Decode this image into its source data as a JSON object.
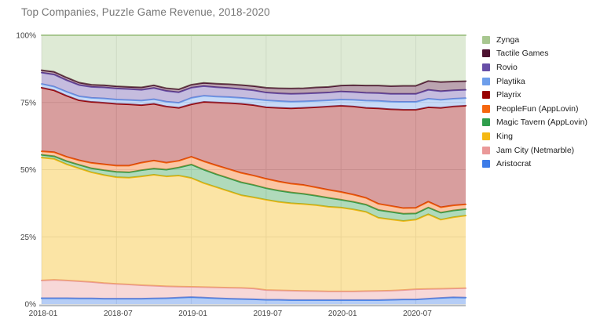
{
  "title": "Top Companies, Puzzle Game Revenue, 2018-2020",
  "colors": {
    "grid": "#e6e6e6",
    "axis_bar": "#b7bcc2",
    "tick_text": "#444444",
    "title_text": "#757575",
    "legend_text": "#212121",
    "background": "#ffffff"
  },
  "chart_data": {
    "type": "area",
    "stacked": true,
    "percent_mode": true,
    "title": "Top Companies, Puzzle Game Revenue, 2018-2020",
    "xlabel": "",
    "ylabel": "",
    "ylim": [
      0,
      100
    ],
    "grid": true,
    "legend_position": "right",
    "y_tick_labels": [
      "0%",
      "25%",
      "50%",
      "75%",
      "100%"
    ],
    "y_tick_values": [
      0,
      25,
      50,
      75,
      100
    ],
    "x_tick_labels": [
      "2018-01",
      "2018-07",
      "2019-01",
      "2019-07",
      "2020-01",
      "2020-07"
    ],
    "x_tick_indices": [
      0,
      6,
      12,
      18,
      24,
      30
    ],
    "x": [
      "2018-01",
      "2018-02",
      "2018-03",
      "2018-04",
      "2018-05",
      "2018-06",
      "2018-07",
      "2018-08",
      "2018-09",
      "2018-10",
      "2018-11",
      "2018-12",
      "2019-01",
      "2019-02",
      "2019-03",
      "2019-04",
      "2019-05",
      "2019-06",
      "2019-07",
      "2019-08",
      "2019-09",
      "2019-10",
      "2019-11",
      "2019-12",
      "2020-01",
      "2020-02",
      "2020-03",
      "2020-04",
      "2020-05",
      "2020-06",
      "2020-07",
      "2020-08",
      "2020-09",
      "2020-10",
      "2020-11"
    ],
    "legend_order_top_to_bottom": [
      "Zynga",
      "Tactile Games",
      "Rovio",
      "Playtika",
      "Playrix",
      "PeopleFun (AppLovin)",
      "Magic Tavern (AppLovin)",
      "King",
      "Jam City (Netmarble)",
      "Aristocrat"
    ],
    "series_note": "series listed bottom-to-top of the stack; values are revenue share in percent",
    "series": [
      {
        "name": "Aristocrat",
        "color": "#3d7ce8",
        "values": [
          2.2,
          2.2,
          2.2,
          2.1,
          2.1,
          2.0,
          2.0,
          2.0,
          2.0,
          2.1,
          2.2,
          2.4,
          2.6,
          2.4,
          2.2,
          2.0,
          1.9,
          1.8,
          1.6,
          1.6,
          1.5,
          1.5,
          1.5,
          1.5,
          1.5,
          1.5,
          1.5,
          1.5,
          1.6,
          1.7,
          1.7,
          2.0,
          2.3,
          2.5,
          2.4
        ]
      },
      {
        "name": "Jam City (Netmarble)",
        "color": "#ea9999",
        "values": [
          6.6,
          6.8,
          6.6,
          6.4,
          6.1,
          5.8,
          5.5,
          5.3,
          5.0,
          4.7,
          4.4,
          4.1,
          3.8,
          3.9,
          4.0,
          4.1,
          4.1,
          4.0,
          3.6,
          3.5,
          3.5,
          3.4,
          3.3,
          3.2,
          3.2,
          3.2,
          3.3,
          3.4,
          3.4,
          3.5,
          3.8,
          3.6,
          3.4,
          3.3,
          3.5
        ]
      },
      {
        "name": "King",
        "color": "#f5b812",
        "values": [
          45.7,
          45.0,
          43.2,
          42.0,
          40.8,
          40.2,
          39.7,
          39.7,
          40.5,
          41.3,
          40.9,
          41.3,
          40.5,
          38.7,
          37.3,
          35.9,
          34.5,
          33.9,
          33.6,
          32.9,
          32.5,
          32.3,
          32.0,
          31.5,
          31.2,
          30.5,
          29.5,
          27.2,
          26.5,
          25.7,
          25.9,
          27.8,
          25.7,
          26.5,
          27.0
        ]
      },
      {
        "name": "Magic Tavern (AppLovin)",
        "color": "#2f9e4c",
        "values": [
          1.0,
          1.0,
          1.2,
          1.3,
          1.5,
          1.8,
          2.0,
          2.0,
          2.3,
          2.3,
          2.5,
          3.0,
          5.0,
          5.0,
          4.8,
          4.8,
          4.8,
          4.6,
          4.3,
          4.2,
          4.0,
          3.8,
          3.5,
          3.3,
          2.9,
          2.8,
          2.7,
          2.9,
          2.8,
          2.7,
          2.3,
          2.5,
          2.6,
          2.5,
          2.4
        ]
      },
      {
        "name": "PeopleFun (AppLovin)",
        "color": "#f5670f",
        "values": [
          1.3,
          1.5,
          1.6,
          1.7,
          2.0,
          2.2,
          2.3,
          2.5,
          2.8,
          3.0,
          2.6,
          2.5,
          2.9,
          3.1,
          3.3,
          3.4,
          3.5,
          3.5,
          3.5,
          3.4,
          3.3,
          3.3,
          3.1,
          3.0,
          2.9,
          2.7,
          2.5,
          2.3,
          2.2,
          2.1,
          2.1,
          2.2,
          2.0,
          1.9,
          1.8
        ]
      },
      {
        "name": "Playrix",
        "color": "#990000",
        "values": [
          23.7,
          23.0,
          22.7,
          22.3,
          22.7,
          22.9,
          23.0,
          22.8,
          21.4,
          21.1,
          20.9,
          19.7,
          19.5,
          22.1,
          23.4,
          24.6,
          25.7,
          26.2,
          26.6,
          27.4,
          28.0,
          28.7,
          29.8,
          31.0,
          32.1,
          32.8,
          33.5,
          35.5,
          36.0,
          36.6,
          36.5,
          35.1,
          37.0,
          36.8,
          36.7
        ]
      },
      {
        "name": "Playtika",
        "color": "#6d9eeb",
        "values": [
          1.4,
          1.4,
          1.5,
          1.5,
          1.5,
          1.6,
          1.6,
          1.6,
          1.7,
          1.7,
          1.8,
          1.9,
          2.4,
          2.3,
          2.2,
          2.2,
          2.2,
          2.3,
          2.6,
          2.5,
          2.5,
          2.4,
          2.4,
          2.3,
          2.3,
          2.5,
          2.7,
          2.8,
          2.8,
          2.9,
          2.9,
          3.2,
          3.0,
          2.9,
          2.8
        ]
      },
      {
        "name": "Rovio",
        "color": "#674ea7",
        "values": [
          4.2,
          4.5,
          4.3,
          4.2,
          4.1,
          4.1,
          4.1,
          4.1,
          4.0,
          4.2,
          4.0,
          3.9,
          3.8,
          3.6,
          3.5,
          3.4,
          3.3,
          3.2,
          2.9,
          2.9,
          2.9,
          2.9,
          2.9,
          2.9,
          3.0,
          2.9,
          2.9,
          2.9,
          2.9,
          3.0,
          3.0,
          3.3,
          3.2,
          3.1,
          3.1
        ]
      },
      {
        "name": "Tactile Games",
        "color": "#4c1130",
        "values": [
          0.9,
          1.0,
          1.0,
          0.9,
          0.8,
          0.8,
          0.8,
          0.8,
          0.9,
          1.0,
          1.0,
          1.1,
          1.1,
          1.2,
          1.3,
          1.4,
          1.5,
          1.6,
          1.8,
          1.9,
          2.0,
          2.0,
          2.1,
          2.1,
          2.2,
          2.5,
          2.7,
          2.8,
          2.9,
          3.0,
          3.0,
          3.3,
          3.4,
          3.3,
          3.2
        ]
      },
      {
        "name": "Zynga",
        "color": "#a8c790",
        "values": [
          13.0,
          13.6,
          15.7,
          17.6,
          18.4,
          18.6,
          19.0,
          19.2,
          19.4,
          18.6,
          19.7,
          20.1,
          18.4,
          17.7,
          18.0,
          18.2,
          18.5,
          18.9,
          19.5,
          19.7,
          19.8,
          19.7,
          19.4,
          19.2,
          18.7,
          18.6,
          18.7,
          18.7,
          18.9,
          18.8,
          18.8,
          17.0,
          17.4,
          17.2,
          17.1
        ]
      }
    ]
  }
}
